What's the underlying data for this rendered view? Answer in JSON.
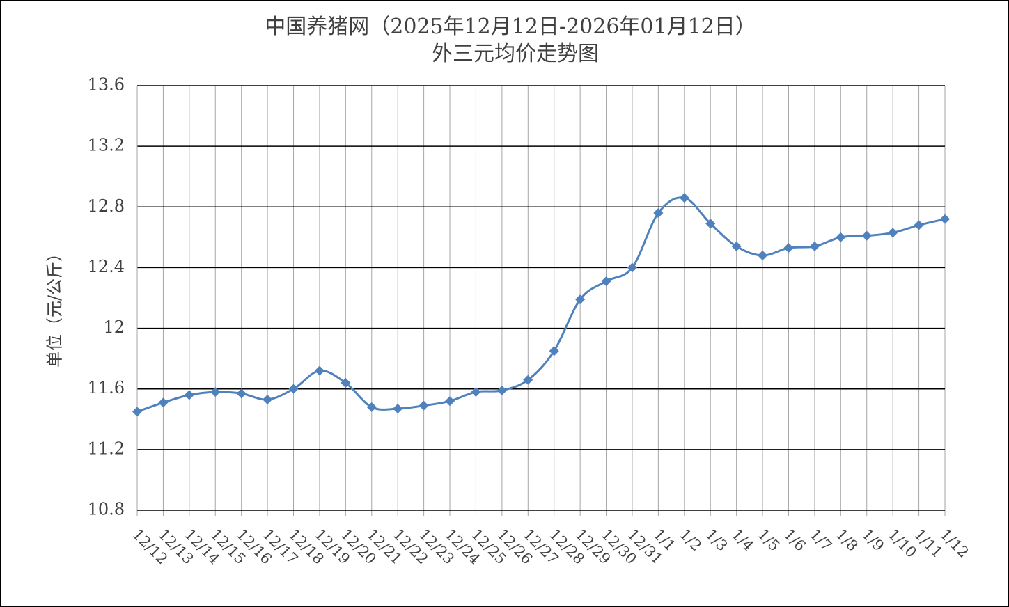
{
  "chart_data": {
    "type": "line",
    "title": "中国养猪网（2025年12月12日-2026年01月12日）",
    "subtitle": "外三元均价走势图",
    "y_label": "单位（元/公斤）",
    "categories": [
      "12/12",
      "12/13",
      "12/14",
      "12/15",
      "12/16",
      "12/17",
      "12/18",
      "12/19",
      "12/20",
      "12/21",
      "12/22",
      "12/23",
      "12/24",
      "12/25",
      "12/26",
      "12/27",
      "12/28",
      "12/29",
      "12/30",
      "12/31",
      "1/1",
      "1/2",
      "1/3",
      "1/4",
      "1/5",
      "1/6",
      "1/7",
      "1/8",
      "1/9",
      "1/10",
      "1/11",
      "1/12"
    ],
    "values": [
      11.45,
      11.51,
      11.56,
      11.58,
      11.57,
      11.53,
      11.6,
      11.72,
      11.64,
      11.48,
      11.47,
      11.49,
      11.52,
      11.58,
      11.59,
      11.66,
      11.85,
      12.19,
      12.31,
      12.4,
      12.76,
      12.86,
      12.69,
      12.54,
      12.48,
      12.53,
      12.54,
      12.6,
      12.61,
      12.63,
      12.68,
      12.72
    ],
    "color": "#4f81bd",
    "ylim": [
      10.8,
      13.6
    ],
    "yticks": [
      10.8,
      11.2,
      11.6,
      12,
      12.4,
      12.8,
      13.2,
      13.6
    ],
    "grid": true,
    "smooth": true
  }
}
